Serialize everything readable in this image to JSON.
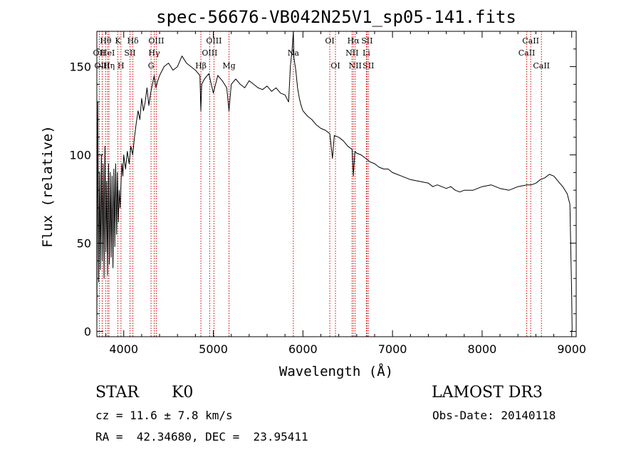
{
  "chart_data": {
    "type": "line",
    "title": "spec-56676-VB042N25V1_sp05-141.fits",
    "xlabel": "Wavelength (Å)",
    "ylabel": "Flux (relative)",
    "xlim": [
      3700,
      9050
    ],
    "ylim": [
      -3,
      170
    ],
    "xticks": [
      4000,
      5000,
      6000,
      7000,
      8000,
      9000
    ],
    "xtick_labels": [
      "4000",
      "5000",
      "6000",
      "7000",
      "8000",
      "9000"
    ],
    "yticks": [
      0,
      50,
      100,
      150
    ],
    "ytick_labels": [
      "0",
      "50",
      "100",
      "150"
    ],
    "grid": false,
    "line_color": "#000000",
    "marker_color": "#cc0000",
    "series": [
      {
        "x": [
          3700,
          3710,
          3720,
          3730,
          3740,
          3750,
          3760,
          3770,
          3780,
          3790,
          3800,
          3810,
          3820,
          3830,
          3840,
          3850,
          3860,
          3870,
          3880,
          3890,
          3900,
          3910,
          3920,
          3930,
          3940,
          3950,
          3960,
          3970,
          3980,
          3990,
          4000,
          4020,
          4040,
          4060,
          4080,
          4100,
          4120,
          4140,
          4160,
          4180,
          4200,
          4220,
          4240,
          4260,
          4280,
          4300,
          4320,
          4340,
          4360,
          4380,
          4400,
          4450,
          4500,
          4550,
          4600,
          4650,
          4700,
          4750,
          4800,
          4850,
          4861,
          4870,
          4900,
          4950,
          5000,
          5050,
          5100,
          5150,
          5175,
          5200,
          5250,
          5300,
          5350,
          5400,
          5450,
          5500,
          5550,
          5600,
          5650,
          5700,
          5750,
          5800,
          5840,
          5860,
          5880,
          5893,
          5900,
          5920,
          5940,
          5960,
          5980,
          6000,
          6050,
          6100,
          6150,
          6200,
          6250,
          6300,
          6330,
          6350,
          6400,
          6450,
          6500,
          6550,
          6563,
          6580,
          6600,
          6650,
          6700,
          6750,
          6800,
          6850,
          6900,
          6950,
          7000,
          7050,
          7100,
          7150,
          7200,
          7300,
          7400,
          7450,
          7500,
          7550,
          7600,
          7650,
          7700,
          7750,
          7800,
          7900,
          8000,
          8100,
          8200,
          8300,
          8400,
          8500,
          8550,
          8600,
          8650,
          8700,
          8750,
          8800,
          8850,
          8900,
          8950,
          8980,
          9000,
          9005
        ],
        "y": [
          2,
          130,
          28,
          90,
          35,
          100,
          40,
          95,
          30,
          105,
          45,
          85,
          32,
          95,
          38,
          90,
          42,
          88,
          36,
          92,
          48,
          95,
          55,
          90,
          62,
          80,
          70,
          85,
          95,
          88,
          100,
          92,
          102,
          95,
          105,
          100,
          110,
          118,
          125,
          120,
          132,
          125,
          130,
          138,
          128,
          135,
          140,
          145,
          138,
          142,
          145,
          150,
          152,
          148,
          150,
          156,
          152,
          150,
          148,
          145,
          125,
          140,
          143,
          146,
          135,
          145,
          142,
          138,
          125,
          140,
          143,
          140,
          138,
          142,
          140,
          138,
          137,
          139,
          136,
          138,
          135,
          134,
          130,
          150,
          160,
          170,
          155,
          148,
          138,
          132,
          128,
          125,
          122,
          120,
          117,
          115,
          114,
          112,
          98,
          111,
          110,
          108,
          105,
          103,
          88,
          102,
          101,
          100,
          98,
          96,
          95,
          93,
          92,
          92,
          90,
          89,
          88,
          87,
          86,
          85,
          84,
          82,
          83,
          82,
          81,
          82,
          80,
          79,
          80,
          80,
          82,
          83,
          81,
          80,
          82,
          83,
          83,
          84,
          86,
          87,
          89,
          88,
          85,
          82,
          78,
          72,
          20,
          0
        ]
      }
    ],
    "line_markers": [
      {
        "label": "Hθ",
        "x": 3798,
        "row": 1
      },
      {
        "label": "OII",
        "x": 3727,
        "row": 2
      },
      {
        "label": "HeI",
        "x": 3820,
        "row": 2
      },
      {
        "label": "OIII",
        "x": 3760,
        "row": 3
      },
      {
        "label": "Hη",
        "x": 3835,
        "row": 3
      },
      {
        "label": "K",
        "x": 3934,
        "row": 1
      },
      {
        "label": "SII",
        "x": 4070,
        "row": 2
      },
      {
        "label": "H",
        "x": 3969,
        "row": 3
      },
      {
        "label": "Hδ",
        "x": 4102,
        "row": 1
      },
      {
        "label": "OIII",
        "x": 4363,
        "row": 1
      },
      {
        "label": "Hγ",
        "x": 4340,
        "row": 2
      },
      {
        "label": "G",
        "x": 4305,
        "row": 3
      },
      {
        "label": "OIII",
        "x": 5007,
        "row": 1
      },
      {
        "label": "OIII",
        "x": 4959,
        "row": 2
      },
      {
        "label": "Hβ",
        "x": 4861,
        "row": 3
      },
      {
        "label": "Mg",
        "x": 5175,
        "row": 3
      },
      {
        "label": "Na",
        "x": 5893,
        "row": 2
      },
      {
        "label": "OI",
        "x": 6300,
        "row": 1
      },
      {
        "label": "OI",
        "x": 6363,
        "row": 3
      },
      {
        "label": "Hα",
        "x": 6563,
        "row": 1
      },
      {
        "label": "SII",
        "x": 6716,
        "row": 1
      },
      {
        "label": "NII",
        "x": 6548,
        "row": 2
      },
      {
        "label": "Li",
        "x": 6708,
        "row": 2
      },
      {
        "label": "NII",
        "x": 6583,
        "row": 3
      },
      {
        "label": "SII",
        "x": 6731,
        "row": 3
      },
      {
        "label": "CaII",
        "x": 8542,
        "row": 1
      },
      {
        "label": "CaII",
        "x": 8498,
        "row": 2
      },
      {
        "label": "CaII",
        "x": 8662,
        "row": 3
      }
    ]
  },
  "info": {
    "object_class": "STAR",
    "subclass": "K0",
    "survey": "LAMOST DR3",
    "redshift": "cz = 11.6 ± 7.8 km/s",
    "obs_date": "Obs-Date: 20140118",
    "coords": "RA =  42.34680, DEC =  23.95411"
  }
}
